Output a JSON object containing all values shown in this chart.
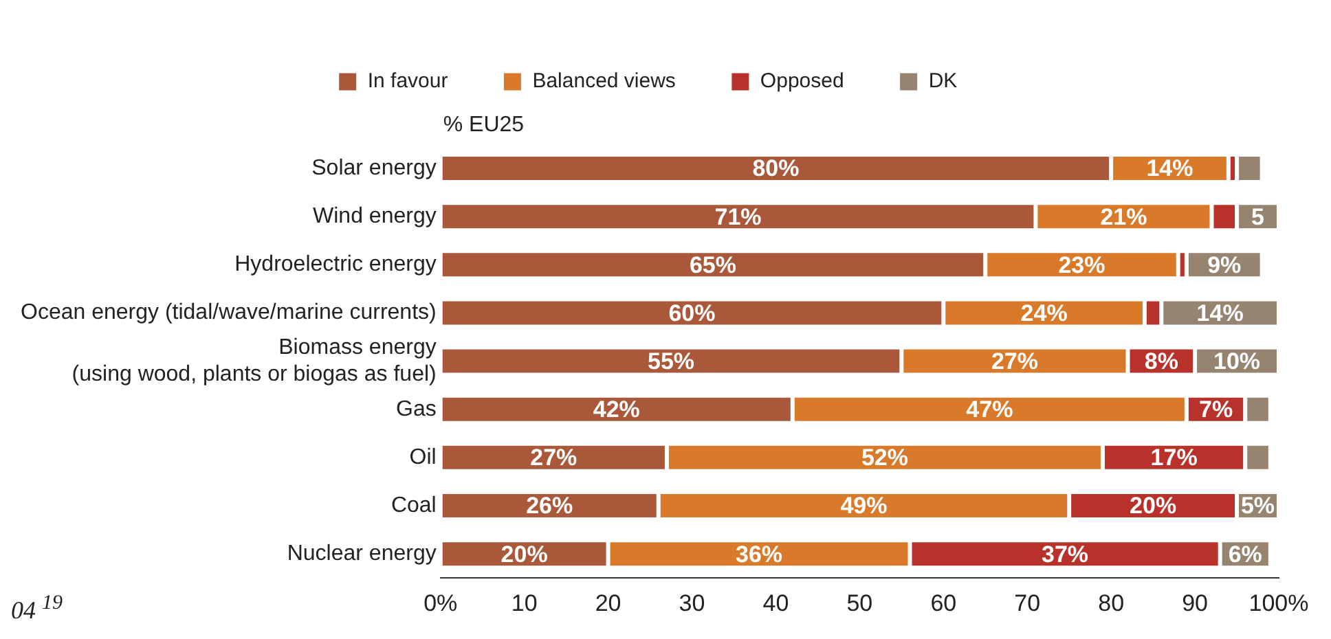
{
  "chart_data": {
    "type": "bar",
    "orientation": "horizontal",
    "stacked": true,
    "subtitle": "% EU25",
    "categories": [
      "Solar energy",
      "Wind energy",
      "Hydroelectric energy",
      "Ocean energy (tidal/wave/marine currents)",
      "Biomass energy\n(using wood, plants or biogas as fuel)",
      "Gas",
      "Oil",
      "Coal",
      "Nuclear energy"
    ],
    "series": [
      {
        "name": "In favour",
        "color": "#a9593a",
        "values": [
          80,
          71,
          65,
          60,
          55,
          42,
          27,
          26,
          20
        ],
        "value_labels": [
          "80%",
          "71%",
          "65%",
          "60%",
          "55%",
          "42%",
          "27%",
          "26%",
          "20%"
        ]
      },
      {
        "name": "Balanced views",
        "color": "#d97a2b",
        "values": [
          14,
          21,
          23,
          24,
          27,
          47,
          52,
          49,
          36
        ],
        "value_labels": [
          "14%",
          "21%",
          "23%",
          "24%",
          "27%",
          "47%",
          "52%",
          "49%",
          "36%"
        ]
      },
      {
        "name": "Opposed",
        "color": "#b8322b",
        "values": [
          1,
          3,
          1,
          2,
          8,
          7,
          17,
          20,
          37
        ],
        "value_labels": [
          null,
          null,
          null,
          null,
          "8%",
          "7%",
          "17%",
          "20%",
          "37%"
        ]
      },
      {
        "name": "DK",
        "color": "#968370",
        "values": [
          3,
          5,
          9,
          14,
          10,
          3,
          3,
          5,
          6
        ],
        "value_labels": [
          null,
          "5",
          "9%",
          "14%",
          "10%",
          null,
          null,
          "5%",
          "6%"
        ]
      }
    ],
    "xlim": [
      0,
      100
    ],
    "xticks": [
      {
        "value": 0,
        "label": "0%"
      },
      10,
      20,
      30,
      40,
      50,
      60,
      70,
      80,
      90,
      {
        "value": 100,
        "label": "100%"
      }
    ],
    "grid": false,
    "legend": "top",
    "annotations": [
      "04 $^{19}$"
    ]
  }
}
